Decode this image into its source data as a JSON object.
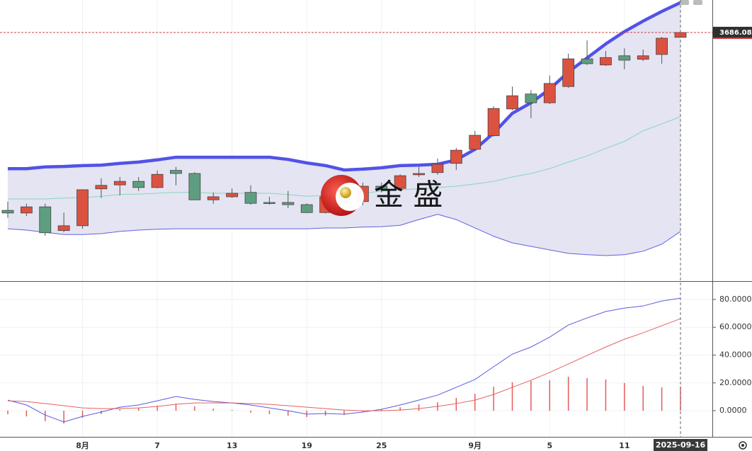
{
  "chart_data": [
    {
      "type": "candlestick",
      "categories": [
        null,
        null,
        null,
        null,
        "8月",
        null,
        null,
        null,
        "7",
        null,
        null,
        null,
        "13",
        null,
        null,
        null,
        "19",
        null,
        null,
        null,
        "25",
        null,
        null,
        null,
        null,
        "9月",
        null,
        null,
        null,
        "5",
        null,
        null,
        null,
        "11",
        null,
        null,
        "2025-09-16"
      ],
      "open": [
        3281,
        3275,
        3289,
        3235,
        3246,
        3330,
        3339,
        3347,
        3333,
        3372,
        3365,
        3305,
        3312,
        3322,
        3299,
        3299,
        3294,
        3276,
        3312,
        3301,
        3336,
        3331,
        3362,
        3367,
        3388,
        3420,
        3451,
        3512,
        3546,
        3526,
        3563,
        3626,
        3612,
        3633,
        3625,
        3636,
        3675
      ],
      "high": [
        3301,
        3296,
        3296,
        3276,
        3328,
        3354,
        3357,
        3357,
        3372,
        3380,
        3368,
        3322,
        3331,
        3338,
        3312,
        3325,
        3297,
        3317,
        3317,
        3344,
        3344,
        3363,
        3380,
        3399,
        3423,
        3462,
        3518,
        3563,
        3555,
        3588,
        3638,
        3668,
        3644,
        3650,
        3647,
        3676,
        3688
      ],
      "low": [
        3264,
        3268,
        3223,
        3231,
        3239,
        3309,
        3315,
        3325,
        3331,
        3338,
        3304,
        3296,
        3309,
        3294,
        3294,
        3286,
        3275,
        3274,
        3296,
        3293,
        3322,
        3328,
        3357,
        3362,
        3373,
        3417,
        3449,
        3509,
        3491,
        3523,
        3560,
        3612,
        3610,
        3602,
        3621,
        3615,
        3674
      ],
      "close": [
        3275,
        3289,
        3230,
        3246,
        3328,
        3338,
        3347,
        3333,
        3363,
        3365,
        3305,
        3312,
        3320,
        3297,
        3297,
        3294,
        3276,
        3312,
        3301,
        3336,
        3328,
        3360,
        3365,
        3386,
        3418,
        3452,
        3513,
        3542,
        3526,
        3570,
        3626,
        3615,
        3629,
        3623,
        3633,
        3673,
        3686.08
      ],
      "up_color": "#dc5240",
      "down_color": "#5e9e80",
      "band_fill": "#e4e4f3",
      "series": [
        {
          "color": "#5252e8",
          "values": [
            3376,
            3376,
            3380,
            3381,
            3383,
            3384,
            3388,
            3391,
            3396,
            3402,
            3402,
            3402,
            3402,
            3402,
            3402,
            3397,
            3389,
            3383,
            3373,
            3375,
            3378,
            3383,
            3384,
            3386,
            3396,
            3420,
            3457,
            3502,
            3526,
            3557,
            3596,
            3628,
            3660,
            3688,
            3712,
            3734,
            3754
          ]
        },
        {
          "color": "#86d8b6",
          "values": [
            3307,
            3307,
            3307,
            3309,
            3310,
            3313,
            3317,
            3318,
            3320,
            3322,
            3322,
            3320,
            3320,
            3320,
            3320,
            3317,
            3313,
            3315,
            3317,
            3320,
            3325,
            3328,
            3330,
            3333,
            3336,
            3341,
            3347,
            3357,
            3365,
            3376,
            3391,
            3405,
            3422,
            3438,
            3462,
            3478,
            3494
          ]
        },
        {
          "color": "#6262de",
          "values": [
            3239,
            3236,
            3231,
            3226,
            3226,
            3228,
            3233,
            3236,
            3238,
            3239,
            3239,
            3239,
            3239,
            3239,
            3239,
            3239,
            3239,
            3241,
            3241,
            3243,
            3244,
            3247,
            3260,
            3272,
            3260,
            3241,
            3222,
            3207,
            3199,
            3191,
            3183,
            3180,
            3178,
            3180,
            3188,
            3204,
            3233
          ]
        }
      ],
      "ylim": [
        3120,
        3760
      ],
      "watermark": "金 盛"
    },
    {
      "type": "line",
      "ylim": [
        -18.8,
        92.7
      ],
      "yticks": [
        {
          "value": 0,
          "label": "0.0000"
        },
        {
          "value": 20,
          "label": "20.0000"
        },
        {
          "value": 40,
          "label": "40.0000"
        },
        {
          "value": 60,
          "label": "60.0000"
        },
        {
          "value": 80,
          "label": "80.0000"
        }
      ],
      "grid": true,
      "series": [
        {
          "color": "#5a5ae0",
          "values": [
            7.6,
            4.1,
            -3.1,
            -8.1,
            -4.1,
            -1.0,
            2.5,
            4.1,
            7.1,
            10.2,
            8.1,
            6.6,
            5.6,
            4.1,
            2.0,
            0.0,
            -2.5,
            -2.0,
            -2.5,
            -1.0,
            1.0,
            4.1,
            7.6,
            11.2,
            16.8,
            22.4,
            31.6,
            40.7,
            45.8,
            52.9,
            61.6,
            66.7,
            71.3,
            73.8,
            75.3,
            78.9,
            80.9
          ]
        },
        {
          "color": "#e56060",
          "values": [
            7.1,
            6.6,
            5.1,
            3.6,
            2.0,
            1.5,
            1.5,
            2.0,
            3.1,
            4.6,
            5.6,
            5.6,
            5.6,
            5.1,
            4.6,
            3.6,
            2.5,
            1.5,
            0.5,
            0.0,
            0.0,
            0.5,
            1.5,
            3.1,
            5.1,
            7.6,
            11.7,
            16.8,
            21.9,
            27.5,
            33.6,
            39.7,
            45.8,
            51.4,
            56.0,
            61.1,
            66.2
          ]
        }
      ],
      "histogram": {
        "color": "#e65a5a",
        "values": [
          -2.5,
          -4.1,
          -7.6,
          -9.2,
          -5.1,
          -2.5,
          1.0,
          2.0,
          3.6,
          5.1,
          3.1,
          1.5,
          0.5,
          -1.5,
          -2.5,
          -3.6,
          -4.6,
          -3.6,
          -3.1,
          -1.0,
          1.0,
          2.5,
          4.6,
          6.1,
          9.2,
          12.2,
          17.3,
          20.4,
          21.4,
          21.9,
          24.4,
          23.4,
          22.4,
          19.9,
          17.8,
          16.8,
          17.3
        ]
      }
    }
  ]
}
